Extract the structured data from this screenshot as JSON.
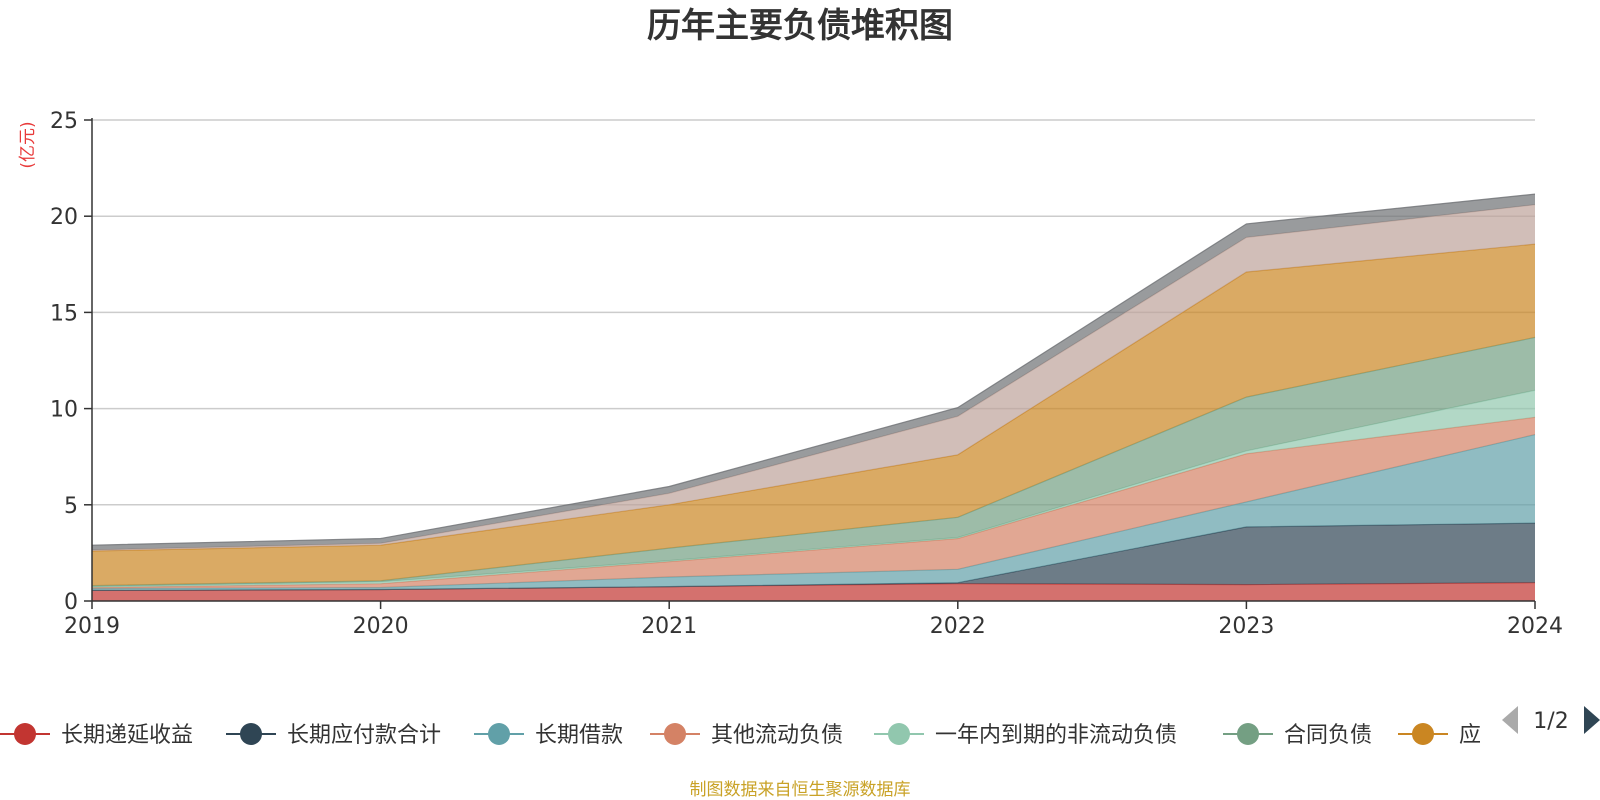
{
  "chart_data": {
    "type": "area",
    "stacked": true,
    "title": "历年主要负债堆积图",
    "unit_label": "(亿元)",
    "x": [
      "2019",
      "2020",
      "2021",
      "2022",
      "2023",
      "2024"
    ],
    "y_ticks": [
      "0",
      "5",
      "10",
      "15",
      "20",
      "25"
    ],
    "ylim": [
      0,
      25
    ],
    "grid": true,
    "legend_position": "bottom",
    "series": [
      {
        "name": "长期递延收益",
        "color": "#c23531",
        "values": [
          0.55,
          0.6,
          0.75,
          0.9,
          0.85,
          0.95
        ]
      },
      {
        "name": "长期应付款合计",
        "color": "#2f4554",
        "values": [
          0.0,
          0.0,
          0.0,
          0.05,
          3.0,
          3.1
        ]
      },
      {
        "name": "长期借款",
        "color": "#61a0a8",
        "values": [
          0.1,
          0.1,
          0.5,
          0.7,
          1.3,
          4.6
        ]
      },
      {
        "name": "其他流动负债",
        "color": "#d48265",
        "values": [
          0.05,
          0.2,
          0.8,
          1.6,
          2.5,
          0.9
        ]
      },
      {
        "name": "一年内到期的非流动负债",
        "color": "#91c7ae",
        "values": [
          0.05,
          0.1,
          0.05,
          0.05,
          0.15,
          1.4
        ]
      },
      {
        "name": "合同负债",
        "color": "#749f83",
        "values": [
          0.05,
          0.05,
          0.65,
          1.05,
          2.8,
          2.75
        ]
      },
      {
        "name": "应",
        "color": "#ca8622",
        "values": [
          1.8,
          1.85,
          2.25,
          3.25,
          6.5,
          4.85
        ]
      },
      {
        "name": "",
        "color": "#bda29a",
        "values": [
          0.05,
          0.1,
          0.6,
          2.0,
          1.8,
          2.05
        ]
      },
      {
        "name": "",
        "color": "#6e7074",
        "values": [
          0.25,
          0.25,
          0.35,
          0.45,
          0.7,
          0.55
        ]
      }
    ]
  },
  "legend": {
    "page_indicator": "1/2",
    "prev_icon": "triangle-left-icon",
    "next_icon": "triangle-right-icon"
  },
  "footer": "制图数据来自恒生聚源数据库"
}
